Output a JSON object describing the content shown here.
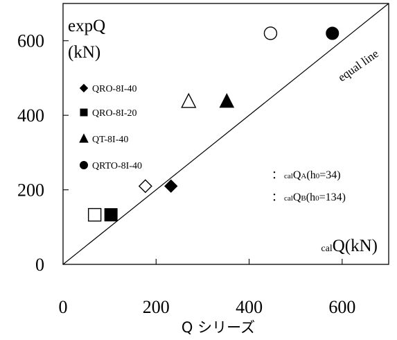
{
  "chart_data": {
    "type": "scatter",
    "xlabel": "Q シリーズ",
    "corner_ylabel": [
      "expQ",
      "(kN)"
    ],
    "corner_xlabel": {
      "sub": "cal",
      "main": "Q(kN)"
    },
    "diagonal_label": "equal line",
    "xlim": [
      0,
      700
    ],
    "ylim": [
      0,
      700
    ],
    "xticks": [
      0,
      200,
      400,
      600
    ],
    "yticks": [
      0,
      200,
      400,
      600
    ],
    "legend": [
      {
        "marker": "diamond",
        "label": "QRO-8I-40"
      },
      {
        "marker": "square",
        "label": "QRO-8I-20"
      },
      {
        "marker": "triangle",
        "label": "QT-8I-40"
      },
      {
        "marker": "circle",
        "label": "QRTO-8I-40"
      }
    ],
    "fill_legend": [
      {
        "prefix": "：",
        "sub1": "cal",
        "main": "Q",
        "sub2": "A",
        "paren_open": "(h",
        "sub3": "0",
        "rest": "=34)"
      },
      {
        "prefix": "：",
        "sub1": "cal",
        "main": "Q",
        "sub2": "B",
        "paren_open": "(h",
        "sub3": "0",
        "rest": "=134)"
      }
    ],
    "series": [
      {
        "name": "QRO-8I-40",
        "marker": "diamond",
        "points": [
          {
            "x": 177,
            "y": 210,
            "filled": false
          },
          {
            "x": 232,
            "y": 210,
            "filled": true
          }
        ]
      },
      {
        "name": "QRO-8I-20",
        "marker": "square",
        "points": [
          {
            "x": 68,
            "y": 133,
            "filled": false
          },
          {
            "x": 103,
            "y": 133,
            "filled": true
          }
        ]
      },
      {
        "name": "QT-8I-40",
        "marker": "triangle",
        "points": [
          {
            "x": 270,
            "y": 437,
            "filled": false
          },
          {
            "x": 352,
            "y": 437,
            "filled": true
          }
        ]
      },
      {
        "name": "QRTO-8I-40",
        "marker": "circle",
        "points": [
          {
            "x": 446,
            "y": 620,
            "filled": false
          },
          {
            "x": 579,
            "y": 620,
            "filled": true
          }
        ]
      }
    ]
  }
}
